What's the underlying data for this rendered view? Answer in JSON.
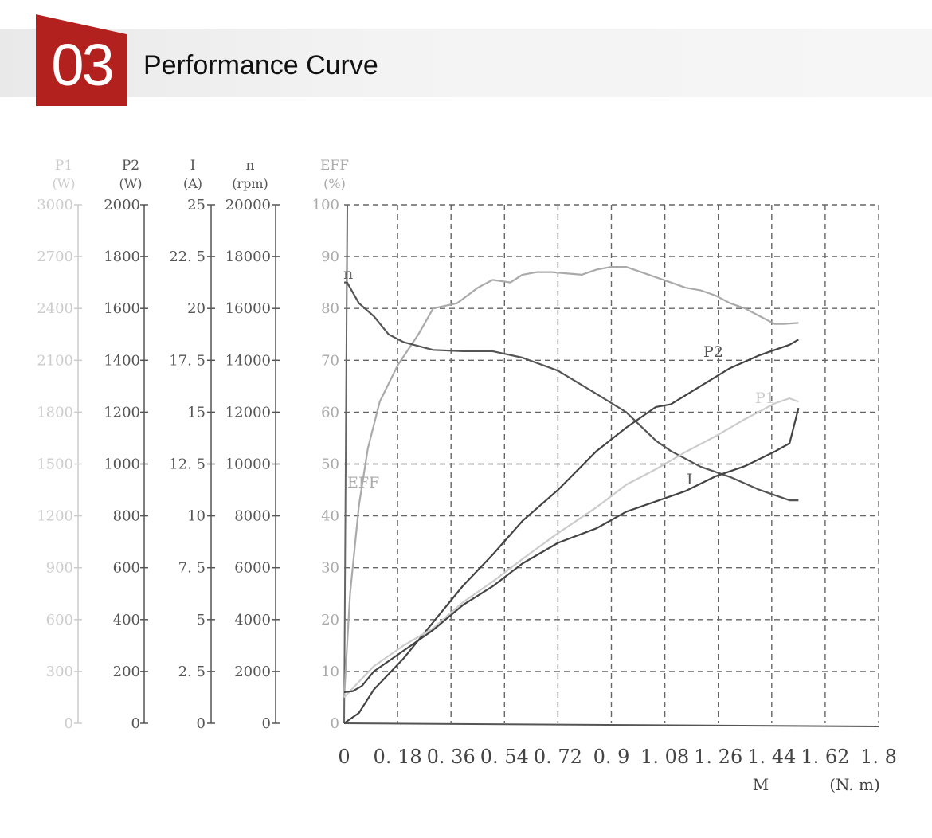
{
  "header": {
    "section_number": "03",
    "title": "Performance Curve"
  },
  "colors": {
    "accent": "#b3211f",
    "axis_dark": "#555555",
    "axis_light": "#cccccc",
    "grid": "#666666"
  },
  "chart_data": {
    "type": "line",
    "grid": true,
    "x": {
      "label": "M",
      "unit": "(N. m)",
      "ticks": [
        "0",
        "0. 18",
        "0. 36",
        "0. 54",
        "0. 72",
        "0. 9",
        "1. 08",
        "1. 26",
        "1. 44",
        "1. 62",
        "1. 8"
      ],
      "range": [
        0,
        1.8
      ]
    },
    "y_axes": [
      {
        "id": "P1",
        "name": "P1",
        "unit": "(W)",
        "range": [
          0,
          3000
        ],
        "ticks": [
          "3000",
          "2700",
          "2400",
          "2100",
          "1800",
          "1500",
          "1200",
          "900",
          "600",
          "300",
          "0"
        ],
        "color": "#cccccc"
      },
      {
        "id": "P2",
        "name": "P2",
        "unit": "(W)",
        "range": [
          0,
          2000
        ],
        "ticks": [
          "2000",
          "1800",
          "1600",
          "1400",
          "1200",
          "1000",
          "800",
          "600",
          "400",
          "200",
          "0"
        ],
        "color": "#555555"
      },
      {
        "id": "I",
        "name": "I",
        "unit": "(A)",
        "range": [
          0,
          25
        ],
        "ticks": [
          "25",
          "22. 5",
          "20",
          "17. 5",
          "15",
          "12. 5",
          "10",
          "7. 5",
          "5",
          "2. 5",
          "0"
        ],
        "color": "#555555"
      },
      {
        "id": "n",
        "name": "n",
        "unit": "(rpm)",
        "range": [
          0,
          20000
        ],
        "ticks": [
          "20000",
          "18000",
          "16000",
          "14000",
          "12000",
          "10000",
          "8000",
          "6000",
          "4000",
          "2000",
          "0"
        ],
        "color": "#555555"
      },
      {
        "id": "EFF",
        "name": "EFF",
        "unit": "(%)",
        "range": [
          0,
          100
        ],
        "ticks": [
          "100",
          "90",
          "80",
          "70",
          "60",
          "50",
          "40",
          "30",
          "20",
          "10",
          "0"
        ],
        "color": "#aaaaaa"
      }
    ],
    "series": [
      {
        "name": "EFF",
        "axis": "EFF",
        "color": "#aaaaaa",
        "x": [
          0,
          0.02,
          0.05,
          0.08,
          0.12,
          0.18,
          0.25,
          0.3,
          0.38,
          0.45,
          0.5,
          0.56,
          0.6,
          0.65,
          0.7,
          0.8,
          0.85,
          0.9,
          0.95,
          1.0,
          1.05,
          1.1,
          1.15,
          1.2,
          1.25,
          1.3,
          1.35,
          1.4,
          1.45,
          1.48,
          1.53
        ],
        "y": [
          5,
          25,
          42,
          53,
          62,
          69,
          75,
          80,
          81,
          84,
          85.5,
          85,
          86.5,
          87,
          87,
          86.5,
          87.5,
          88,
          88,
          87,
          86,
          85,
          84,
          83.5,
          82.5,
          81,
          80,
          78.5,
          77,
          77,
          77.2
        ]
      },
      {
        "name": "n",
        "axis": "n",
        "color": "#555555",
        "x": [
          0,
          0.01,
          0.05,
          0.1,
          0.15,
          0.2,
          0.3,
          0.4,
          0.5,
          0.6,
          0.72,
          0.85,
          0.95,
          1.05,
          1.1,
          1.2,
          1.3,
          1.4,
          1.5,
          1.53
        ],
        "y": [
          17000,
          17000,
          16200,
          15700,
          15000,
          14700,
          14400,
          14350,
          14350,
          14100,
          13600,
          12700,
          12000,
          10900,
          10500,
          9900,
          9500,
          9000,
          8600,
          8600
        ]
      },
      {
        "name": "P2",
        "axis": "P2",
        "color": "#444444",
        "x": [
          0,
          0.05,
          0.1,
          0.2,
          0.3,
          0.4,
          0.5,
          0.6,
          0.72,
          0.85,
          0.95,
          1.0,
          1.05,
          1.1,
          1.2,
          1.3,
          1.4,
          1.5,
          1.53
        ],
        "y": [
          0,
          40,
          130,
          250,
          390,
          530,
          650,
          780,
          900,
          1050,
          1140,
          1180,
          1220,
          1230,
          1300,
          1370,
          1420,
          1460,
          1480
        ]
      },
      {
        "name": "P1",
        "axis": "P1",
        "color": "#cccccc",
        "x": [
          0,
          0.05,
          0.1,
          0.2,
          0.3,
          0.4,
          0.5,
          0.6,
          0.72,
          0.85,
          0.95,
          1.05,
          1.15,
          1.25,
          1.35,
          1.45,
          1.5,
          1.53
        ],
        "y": [
          150,
          240,
          330,
          450,
          550,
          700,
          820,
          950,
          1100,
          1250,
          1380,
          1470,
          1570,
          1660,
          1760,
          1850,
          1880,
          1860
        ]
      },
      {
        "name": "I",
        "axis": "I",
        "color": "#444444",
        "x": [
          0,
          0.03,
          0.06,
          0.1,
          0.2,
          0.3,
          0.4,
          0.5,
          0.6,
          0.72,
          0.85,
          0.95,
          1.05,
          1.15,
          1.25,
          1.35,
          1.45,
          1.5,
          1.53
        ],
        "y": [
          1.5,
          1.55,
          1.8,
          2.5,
          3.5,
          4.5,
          5.7,
          6.6,
          7.7,
          8.7,
          9.4,
          10.2,
          10.7,
          11.2,
          11.9,
          12.4,
          13.1,
          13.5,
          15.2
        ]
      }
    ],
    "curve_labels": [
      {
        "text": "n",
        "series": "n",
        "color": "#666666"
      },
      {
        "text": "EFF",
        "series": "EFF",
        "color": "#aaaaaa"
      },
      {
        "text": "P2",
        "series": "P2",
        "color": "#555555"
      },
      {
        "text": "P1",
        "series": "P1",
        "color": "#cccccc"
      },
      {
        "text": "I",
        "series": "I",
        "color": "#555555"
      }
    ]
  }
}
